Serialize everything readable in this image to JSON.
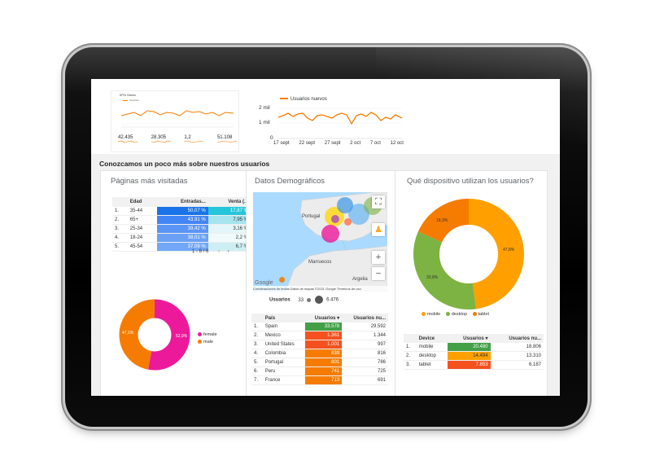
{
  "colors": {
    "orange": "#f57c00",
    "blue": "#1e88e5",
    "pink": "#ec1a9a",
    "green": "#7cb342",
    "yellow": "#ffa000"
  },
  "mini": {
    "title": "KPI's Claves",
    "legend": "Usuarios",
    "kpis": [
      {
        "value": "42.435"
      },
      {
        "value": "28.305"
      },
      {
        "value": "1,2"
      },
      {
        "value": "51.108"
      }
    ]
  },
  "users_chart": {
    "legend": "Usuarios nuevos",
    "y_labels": [
      "2 mil",
      "1 mil",
      "0"
    ],
    "x_labels": [
      "17 sept",
      "22 sept",
      "27 sept",
      "2 oct",
      "7 oct",
      "12 oct"
    ]
  },
  "section": {
    "title": "Conozcamos un poco más sobre nuestros usuarios"
  },
  "pages": {
    "title": "Páginas más visitadas",
    "headers": [
      "Edad",
      "Entradas...",
      "Venta (..."
    ],
    "rows": [
      {
        "n": "1.",
        "label": "35-44",
        "a": "50,07 %",
        "b": "17,87 %"
      },
      {
        "n": "2.",
        "label": "65+",
        "a": "43,91 %",
        "b": "7,95 %"
      },
      {
        "n": "3.",
        "label": "25-34",
        "a": "39,42 %",
        "b": "3,16 %"
      },
      {
        "n": "4.",
        "label": "18-24",
        "a": "38,01 %",
        "b": "2,2 %"
      },
      {
        "n": "5.",
        "label": "45-54",
        "a": "37,09 %",
        "b": "6,7 %"
      }
    ],
    "pagination": "1 - 6 / 6"
  },
  "gender": {
    "slices": [
      {
        "name": "female",
        "value": 52.9
      },
      {
        "name": "male",
        "value": 47.1
      }
    ],
    "label_female": "52,9%",
    "label_male": "47,1%"
  },
  "demo": {
    "title": "Datos Demográficos",
    "places": {
      "portugal": "Portugal",
      "marruecos": "Marruecos",
      "argelia": "Argelia",
      "google": "Google"
    },
    "attribution": "Combinaciones de teclas   Datos de mapas ©2021 Google   Términos de uso",
    "bubble_legend": {
      "label": "Usuarios",
      "min": "33",
      "max": "6.476"
    },
    "headers": [
      "País",
      "Usuarios",
      "Usuarios nu..."
    ],
    "rows": [
      {
        "n": "1.",
        "label": "Spain",
        "a": "33.578",
        "b": "29.592",
        "w": 1.0
      },
      {
        "n": "2.",
        "label": "Mexico",
        "a": "1.361",
        "b": "1.344",
        "w": 0.92
      },
      {
        "n": "3.",
        "label": "United States",
        "a": "1.001",
        "b": "997",
        "w": 0.9
      },
      {
        "n": "4.",
        "label": "Colombia",
        "a": "839",
        "b": "816",
        "w": 0.88
      },
      {
        "n": "5.",
        "label": "Portugal",
        "a": "801",
        "b": "786",
        "w": 0.87
      },
      {
        "n": "6.",
        "label": "Peru",
        "a": "741",
        "b": "725",
        "w": 0.86
      },
      {
        "n": "7.",
        "label": "France",
        "a": "713",
        "b": "691",
        "w": 0.85
      }
    ]
  },
  "device": {
    "title": "Qué dispositivo utilizan los usuarios?",
    "slices": [
      {
        "name": "mobile",
        "value": 47.8
      },
      {
        "name": "desktop",
        "value": 33.8
      },
      {
        "name": "tablet",
        "value": 18.3
      }
    ],
    "label_mobile": "47,8%",
    "label_desktop": "33,8%",
    "label_tablet": "18,3%",
    "headers": [
      "Device",
      "Usuarios",
      "Usuarios nu..."
    ],
    "rows": [
      {
        "n": "1.",
        "label": "mobile",
        "a": "20.480",
        "b": "18.806"
      },
      {
        "n": "2.",
        "label": "desktop",
        "a": "14.494",
        "b": "13.310"
      },
      {
        "n": "3.",
        "label": "tablet",
        "a": "7.853",
        "b": "6.187"
      }
    ]
  }
}
